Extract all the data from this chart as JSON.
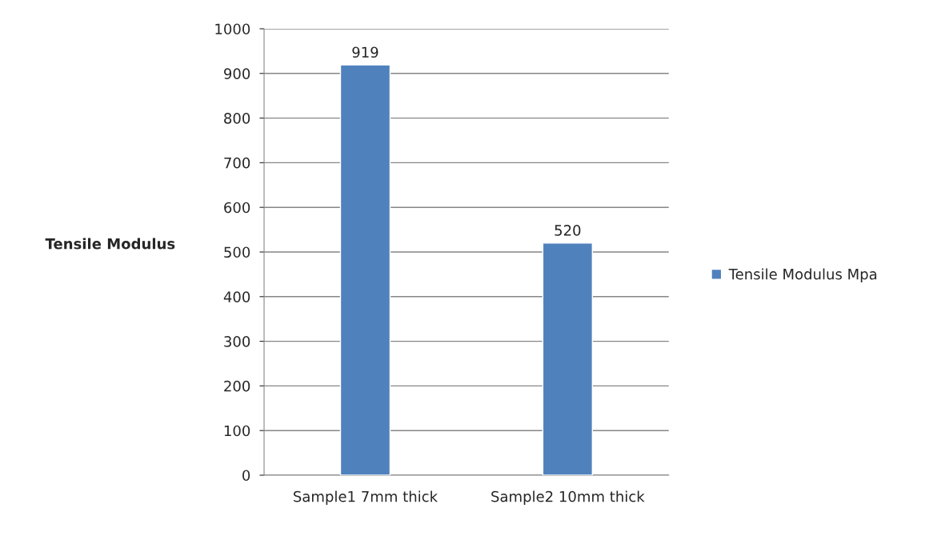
{
  "chart_data": {
    "type": "bar",
    "ylabel": "Tensile Modulus",
    "categories": [
      "Sample1 7mm thick",
      "Sample2 10mm thick"
    ],
    "series": [
      {
        "name": "Tensile Modulus Mpa",
        "color": "#4f81bd",
        "values": [
          919,
          520
        ]
      }
    ],
    "ylim": [
      0,
      1000
    ],
    "yticks": [
      0,
      100,
      200,
      300,
      400,
      500,
      600,
      700,
      800,
      900,
      1000
    ],
    "grid": "y",
    "legend": "right",
    "data_labels": true
  }
}
